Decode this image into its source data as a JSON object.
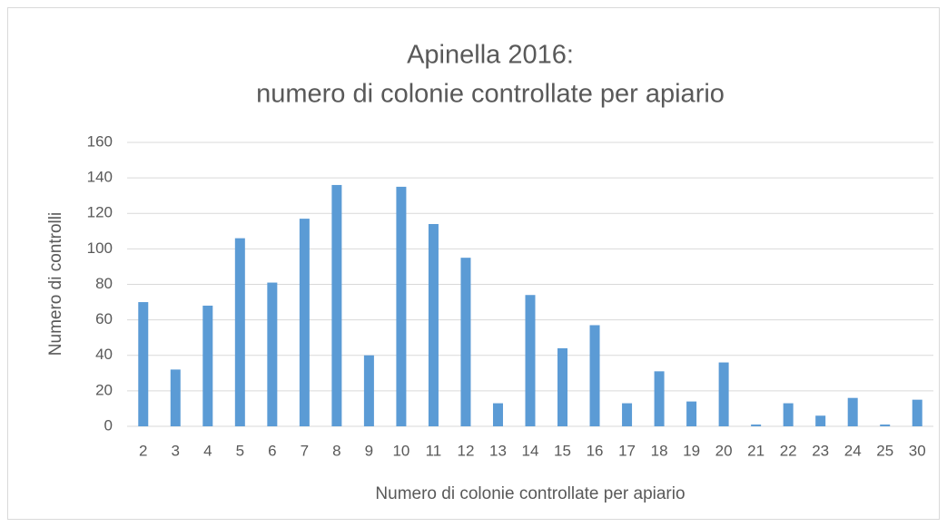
{
  "chart_data": {
    "type": "bar",
    "title": [
      "Apinella 2016:",
      "numero di colonie controllate per apiario"
    ],
    "x_label": "Numero di colonie controllate per apiario",
    "y_label": "Numero di controlli",
    "categories": [
      "2",
      "3",
      "4",
      "5",
      "6",
      "7",
      "8",
      "9",
      "10",
      "11",
      "12",
      "13",
      "14",
      "15",
      "16",
      "17",
      "18",
      "19",
      "20",
      "21",
      "22",
      "23",
      "24",
      "25",
      "30"
    ],
    "values": [
      70,
      32,
      68,
      106,
      81,
      117,
      136,
      40,
      135,
      114,
      95,
      13,
      74,
      44,
      57,
      13,
      31,
      14,
      36,
      1,
      13,
      6,
      16,
      1,
      15
    ],
    "color": "#5b9bd5",
    "ylim": [
      0,
      160
    ],
    "yticks": [
      0,
      20,
      40,
      60,
      80,
      100,
      120,
      140,
      160
    ],
    "grid": true
  }
}
